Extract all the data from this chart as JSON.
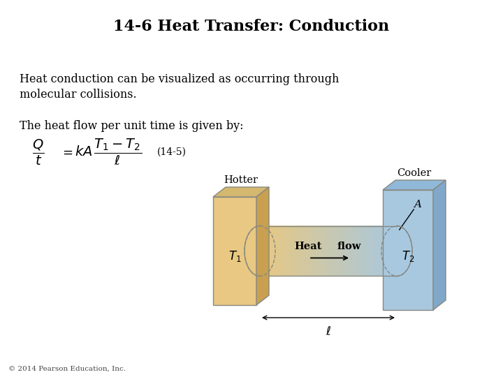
{
  "title": "14-6 Heat Transfer: Conduction",
  "title_fontsize": 16,
  "title_fontweight": "bold",
  "body_text_1": "Heat conduction can be visualized as occurring through\nmolecular collisions.",
  "body_text_2": "The heat flow per unit time is given by:",
  "equation_label": "(14-5)",
  "copyright": "© 2014 Pearson Education, Inc.",
  "bg_color": "#ffffff",
  "text_color": "#000000",
  "hotter_block_face": "#e8c882",
  "hotter_block_top": "#d4b870",
  "hotter_block_side": "#c8a050",
  "cooler_block_face": "#a8c8e0",
  "cooler_block_top": "#90b8d8",
  "cooler_block_side": "#80a8c8",
  "cyl_warm": "#e8c882",
  "cyl_cool": "#a8c8e0",
  "edge_color": "#888880",
  "label_hotter": "Hotter",
  "label_cooler": "Cooler",
  "label_A": "A",
  "label_T1": "$T_1$",
  "label_T2": "$T_2$",
  "label_heat": "Heat",
  "label_flow": "flow",
  "label_ell": "$\\ell$"
}
